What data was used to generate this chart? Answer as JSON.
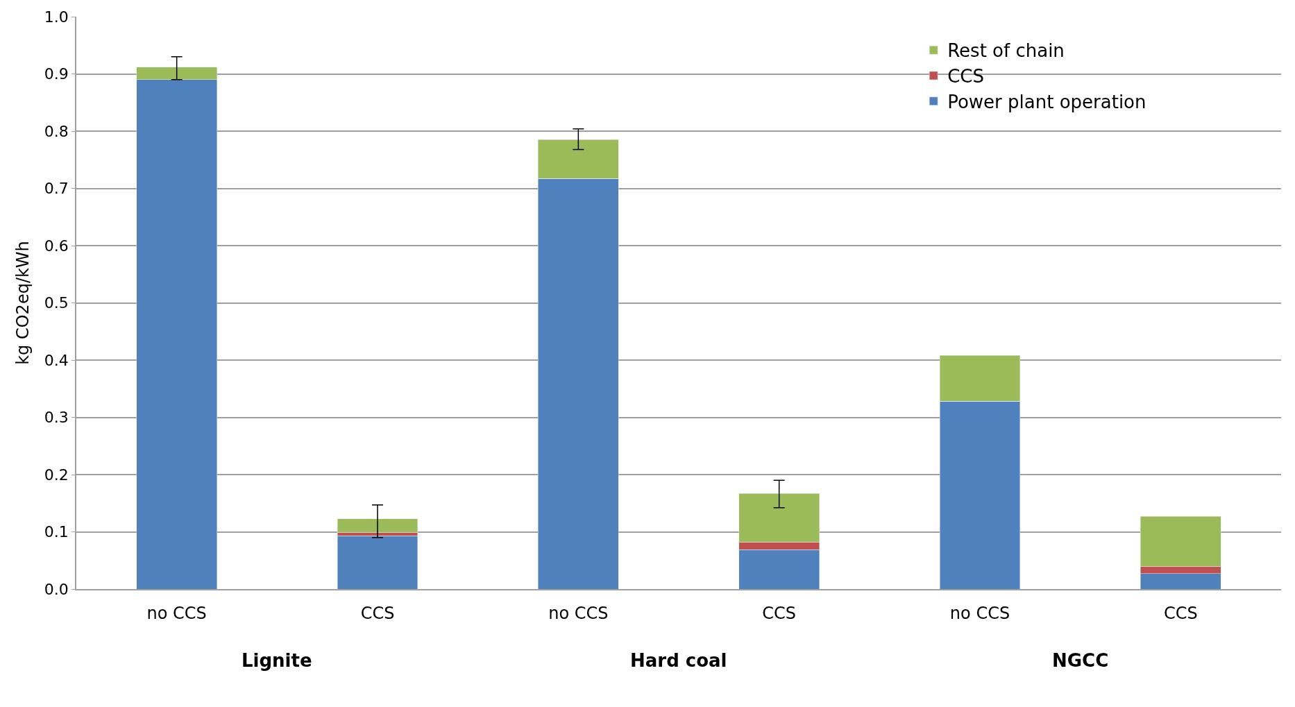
{
  "chart_data": {
    "type": "bar",
    "stacked": true,
    "ylabel": "kg CO2eq/kWh",
    "categories": [
      "no CCS",
      "CCS",
      "no CCS",
      "CCS",
      "no CCS",
      "CCS"
    ],
    "annotations": [
      "Lignite",
      "Hard coal",
      "NGCC"
    ],
    "series": [
      {
        "name": "Power plant operation",
        "color": "#4f81bd",
        "values": [
          0.89,
          0.093,
          0.717,
          0.069,
          0.328,
          0.027
        ]
      },
      {
        "name": "CCS",
        "color": "#c0504d",
        "values": [
          0,
          0.006,
          0,
          0.013,
          0,
          0.013
        ]
      },
      {
        "name": "Rest of chain",
        "color": "#9bbb59",
        "values": [
          0.022,
          0.024,
          0.068,
          0.085,
          0.08,
          0.087
        ],
        "errors": [
          [
            0.89,
            0.93
          ],
          [
            0.09,
            0.147
          ],
          [
            0.768,
            0.804
          ],
          [
            0.142,
            0.19
          ],
          null,
          null
        ]
      }
    ],
    "ylim": [
      0,
      1.0
    ],
    "yticks": [
      {
        "value": 0,
        "label": "0.0"
      },
      0.1,
      0.2,
      0.3,
      0.4,
      0.5,
      0.6,
      0.7,
      0.8,
      0.9,
      {
        "value": 1.0,
        "label": "1.0"
      }
    ],
    "grid": "y",
    "legend": "top right"
  }
}
